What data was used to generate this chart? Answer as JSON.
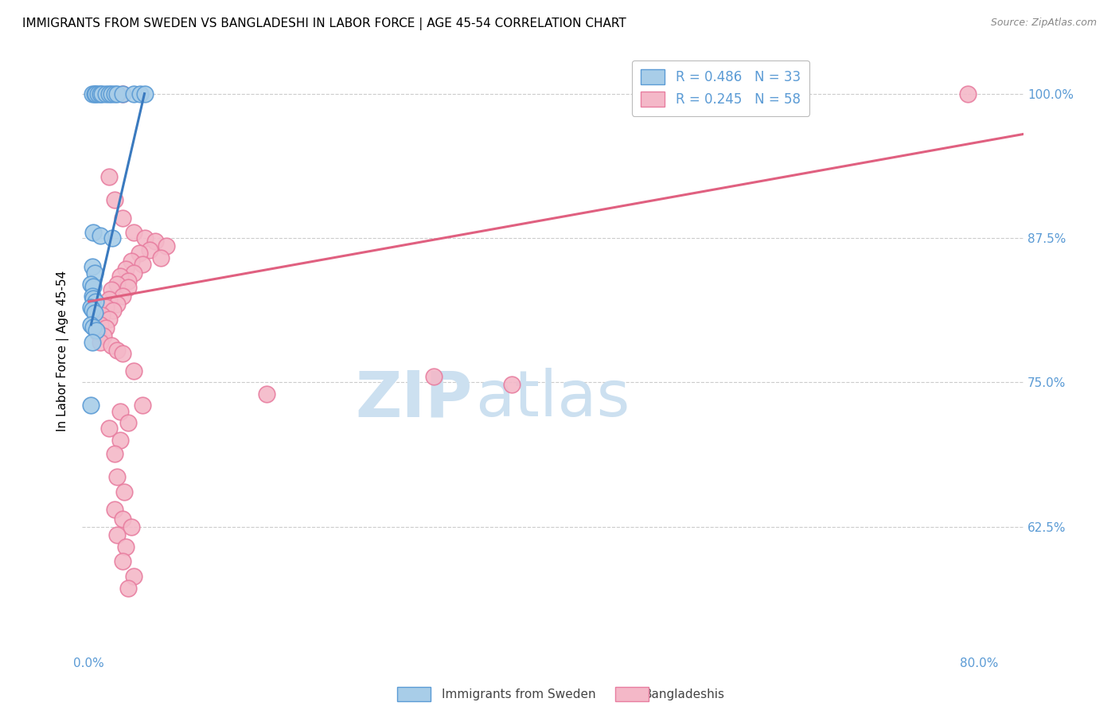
{
  "title": "IMMIGRANTS FROM SWEDEN VS BANGLADESHI IN LABOR FORCE | AGE 45-54 CORRELATION CHART",
  "source": "Source: ZipAtlas.com",
  "ylabel": "In Labor Force | Age 45-54",
  "ytick_labels": [
    "100.0%",
    "87.5%",
    "75.0%",
    "62.5%"
  ],
  "ytick_values": [
    1.0,
    0.875,
    0.75,
    0.625
  ],
  "ylim": [
    0.515,
    1.04
  ],
  "xlim": [
    -0.006,
    0.84
  ],
  "legend_label_blue": "Immigrants from Sweden",
  "legend_label_pink": "Bangladeshis",
  "blue_color": "#a8cde8",
  "pink_color": "#f4b8c8",
  "blue_edge_color": "#5b9bd5",
  "pink_edge_color": "#e87ea0",
  "blue_line_color": "#3a7abf",
  "pink_line_color": "#e06080",
  "blue_scatter": [
    [
      0.003,
      1.0
    ],
    [
      0.005,
      1.0
    ],
    [
      0.006,
      1.0
    ],
    [
      0.008,
      1.0
    ],
    [
      0.01,
      1.0
    ],
    [
      0.012,
      1.0
    ],
    [
      0.015,
      1.0
    ],
    [
      0.018,
      1.0
    ],
    [
      0.02,
      1.0
    ],
    [
      0.023,
      1.0
    ],
    [
      0.025,
      1.0
    ],
    [
      0.03,
      1.0
    ],
    [
      0.04,
      1.0
    ],
    [
      0.046,
      1.0
    ],
    [
      0.05,
      1.0
    ],
    [
      0.004,
      0.88
    ],
    [
      0.01,
      0.877
    ],
    [
      0.021,
      0.875
    ],
    [
      0.003,
      0.85
    ],
    [
      0.005,
      0.845
    ],
    [
      0.002,
      0.835
    ],
    [
      0.004,
      0.833
    ],
    [
      0.003,
      0.825
    ],
    [
      0.004,
      0.823
    ],
    [
      0.006,
      0.82
    ],
    [
      0.002,
      0.815
    ],
    [
      0.003,
      0.813
    ],
    [
      0.005,
      0.81
    ],
    [
      0.002,
      0.8
    ],
    [
      0.004,
      0.798
    ],
    [
      0.007,
      0.795
    ],
    [
      0.003,
      0.785
    ],
    [
      0.002,
      0.73
    ]
  ],
  "pink_scatter": [
    [
      0.03,
      1.0
    ],
    [
      0.79,
      1.0
    ],
    [
      0.018,
      0.928
    ],
    [
      0.023,
      0.908
    ],
    [
      0.03,
      0.892
    ],
    [
      0.04,
      0.88
    ],
    [
      0.05,
      0.875
    ],
    [
      0.06,
      0.872
    ],
    [
      0.07,
      0.868
    ],
    [
      0.055,
      0.865
    ],
    [
      0.045,
      0.862
    ],
    [
      0.065,
      0.858
    ],
    [
      0.038,
      0.855
    ],
    [
      0.048,
      0.852
    ],
    [
      0.033,
      0.848
    ],
    [
      0.04,
      0.845
    ],
    [
      0.028,
      0.842
    ],
    [
      0.035,
      0.838
    ],
    [
      0.025,
      0.835
    ],
    [
      0.035,
      0.832
    ],
    [
      0.02,
      0.83
    ],
    [
      0.03,
      0.825
    ],
    [
      0.018,
      0.822
    ],
    [
      0.025,
      0.818
    ],
    [
      0.015,
      0.815
    ],
    [
      0.022,
      0.812
    ],
    [
      0.012,
      0.808
    ],
    [
      0.018,
      0.805
    ],
    [
      0.01,
      0.8
    ],
    [
      0.015,
      0.797
    ],
    [
      0.008,
      0.793
    ],
    [
      0.013,
      0.79
    ],
    [
      0.01,
      0.785
    ],
    [
      0.02,
      0.782
    ],
    [
      0.025,
      0.778
    ],
    [
      0.03,
      0.775
    ],
    [
      0.04,
      0.76
    ],
    [
      0.31,
      0.755
    ],
    [
      0.38,
      0.748
    ],
    [
      0.16,
      0.74
    ],
    [
      0.048,
      0.73
    ],
    [
      0.028,
      0.725
    ],
    [
      0.035,
      0.715
    ],
    [
      0.018,
      0.71
    ],
    [
      0.028,
      0.7
    ],
    [
      0.023,
      0.688
    ],
    [
      0.025,
      0.668
    ],
    [
      0.032,
      0.655
    ],
    [
      0.023,
      0.64
    ],
    [
      0.03,
      0.632
    ],
    [
      0.038,
      0.625
    ],
    [
      0.025,
      0.618
    ],
    [
      0.033,
      0.608
    ],
    [
      0.03,
      0.595
    ],
    [
      0.04,
      0.582
    ],
    [
      0.035,
      0.572
    ]
  ],
  "blue_trendline": [
    [
      0.002,
      0.8
    ],
    [
      0.05,
      1.0
    ]
  ],
  "pink_trendline": [
    [
      0.0,
      0.82
    ],
    [
      0.84,
      0.965
    ]
  ],
  "watermark_zip": "ZIP",
  "watermark_atlas": "atlas",
  "watermark_color": "#cce0f0",
  "background_color": "#ffffff",
  "grid_color": "#cccccc",
  "title_fontsize": 11,
  "tick_color": "#5b9bd5"
}
